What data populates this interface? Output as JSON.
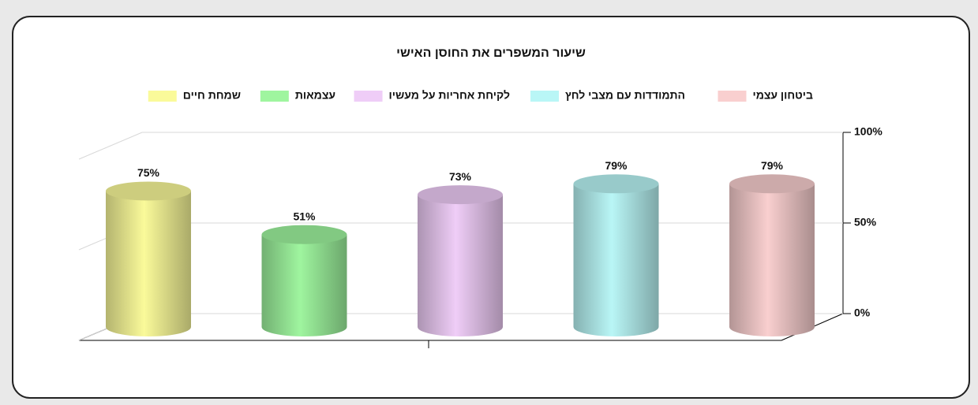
{
  "chart_data": {
    "type": "bar",
    "title": "שיעור המשפרים את החוסן האישי",
    "categories": [
      "ביטחון עצמי",
      "התמודדות עם מצבי לחץ",
      "לקיחת אחריות על מעשיו",
      "עצמאות",
      "שמחת חיים"
    ],
    "values": [
      79,
      79,
      73,
      51,
      75
    ],
    "value_labels": [
      "79%",
      "79%",
      "73%",
      "51%",
      "75%"
    ],
    "colors": [
      "#f9cfcf",
      "#b9f6f6",
      "#efcdf7",
      "#9ff59f",
      "#fafa9a"
    ],
    "ylim": [
      0,
      100
    ],
    "yticks": [
      {
        "value": 0,
        "label": "0%"
      },
      {
        "value": 50,
        "label": "50%"
      },
      {
        "value": 100,
        "label": "100%"
      }
    ],
    "grid": true
  }
}
